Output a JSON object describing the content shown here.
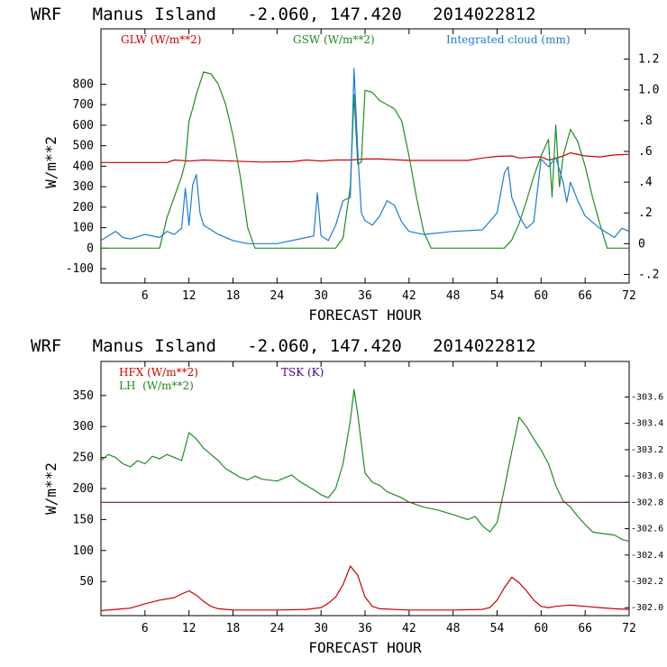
{
  "chart_data": [
    {
      "type": "line",
      "title": "WRF   Manus Island   -2.060, 147.420   2014022812",
      "xlabel": "FORECAST HOUR",
      "ylabel": "W/m**2",
      "xlim": [
        0,
        72
      ],
      "ylim": [
        -170,
        1070
      ],
      "y2lim": [
        -0.256,
        1.397
      ],
      "x_ticks": [
        6,
        12,
        18,
        24,
        30,
        36,
        42,
        48,
        54,
        60,
        66,
        72
      ],
      "y_ticks": [
        -100,
        0,
        100,
        200,
        300,
        400,
        500,
        600,
        700,
        800
      ],
      "y2_ticks": [
        "-.2",
        "0",
        ".2",
        ".4",
        ".6",
        ".8",
        "1.0",
        "1.2"
      ],
      "y2_tick_values": [
        -0.2,
        0,
        0.2,
        0.4,
        0.6,
        0.8,
        1.0,
        1.2
      ],
      "grid": false,
      "legend_position": "top",
      "series": [
        {
          "name": "GLW (W/m**2)",
          "axis": "left",
          "color": "#cc0000",
          "x": [
            0,
            6,
            9,
            10,
            12,
            14,
            18,
            22,
            26,
            28,
            30,
            32,
            34,
            36,
            38,
            42,
            46,
            50,
            52,
            54,
            56,
            57,
            58,
            59,
            60,
            61,
            62,
            63,
            64,
            66,
            68,
            70,
            72
          ],
          "y": [
            418,
            418,
            418,
            430,
            425,
            430,
            425,
            420,
            422,
            430,
            425,
            430,
            430,
            435,
            435,
            428,
            428,
            428,
            440,
            448,
            450,
            440,
            442,
            445,
            445,
            430,
            438,
            450,
            465,
            450,
            445,
            455,
            458
          ]
        },
        {
          "name": "GSW (W/m**2)",
          "axis": "left",
          "color": "#228b22",
          "x": [
            0,
            8,
            9,
            10,
            11,
            11.5,
            12,
            12.5,
            13,
            14,
            15,
            16,
            17,
            18,
            19,
            20,
            21,
            32,
            33,
            34,
            34.5,
            35,
            35.5,
            36,
            37,
            38,
            39,
            40,
            41,
            42,
            43,
            44,
            45,
            55,
            56,
            57,
            58,
            59,
            60,
            61,
            61.5,
            62,
            62.5,
            63,
            64,
            65,
            66,
            67,
            68,
            69,
            72
          ],
          "y": [
            0,
            0,
            150,
            250,
            350,
            420,
            620,
            680,
            750,
            860,
            850,
            800,
            700,
            550,
            350,
            100,
            0,
            0,
            50,
            300,
            750,
            410,
            420,
            770,
            760,
            720,
            700,
            680,
            620,
            450,
            250,
            80,
            0,
            0,
            40,
            120,
            230,
            350,
            450,
            530,
            250,
            600,
            300,
            450,
            580,
            520,
            400,
            250,
            120,
            0,
            0
          ]
        },
        {
          "name": "Integrated cloud (mm)",
          "axis": "right",
          "color": "#1e7bd1",
          "x": [
            0,
            1,
            2,
            3,
            4,
            6,
            8,
            9,
            10,
            11,
            11.5,
            12,
            12.5,
            13,
            13.5,
            14,
            16,
            18,
            20,
            24,
            28,
            29,
            29.5,
            30,
            31,
            32,
            33,
            34,
            34.5,
            35,
            35.5,
            36,
            37,
            38,
            39,
            40,
            41,
            42,
            44,
            48,
            52,
            54,
            55,
            55.5,
            56,
            57,
            58,
            59,
            60,
            61,
            62,
            63,
            63.5,
            64,
            65,
            66,
            68,
            70,
            71,
            72
          ],
          "y": [
            0.02,
            0.05,
            0.08,
            0.04,
            0.03,
            0.06,
            0.04,
            0.08,
            0.06,
            0.1,
            0.36,
            0.12,
            0.38,
            0.45,
            0.2,
            0.12,
            0.06,
            0.02,
            0.0,
            0.0,
            0.04,
            0.05,
            0.33,
            0.05,
            0.02,
            0.12,
            0.28,
            0.3,
            1.14,
            0.6,
            0.2,
            0.15,
            0.12,
            0.18,
            0.28,
            0.25,
            0.14,
            0.08,
            0.06,
            0.08,
            0.09,
            0.2,
            0.46,
            0.5,
            0.3,
            0.18,
            0.1,
            0.14,
            0.55,
            0.5,
            0.56,
            0.4,
            0.27,
            0.4,
            0.28,
            0.18,
            0.1,
            0.04,
            0.1,
            0.08
          ]
        }
      ]
    },
    {
      "type": "line",
      "title": "WRF   Manus Island   -2.060, 147.420   2014022812",
      "xlabel": "FORECAST HOUR",
      "ylabel": "W/m**2",
      "xlim": [
        0,
        72
      ],
      "ylim": [
        -5,
        405
      ],
      "y2lim": [
        301.94,
        303.87
      ],
      "x_ticks": [
        6,
        12,
        18,
        24,
        30,
        36,
        42,
        48,
        54,
        60,
        66,
        72
      ],
      "y_ticks": [
        50,
        100,
        150,
        200,
        250,
        300,
        350
      ],
      "y2_ticks": [
        "302.0",
        "302.2",
        "302.4",
        "302.6",
        "302.8",
        "303.0",
        "303.2",
        "303.4",
        "303.6"
      ],
      "y2_tick_values": [
        302.0,
        302.2,
        302.4,
        302.6,
        302.8,
        303.0,
        303.2,
        303.4,
        303.6
      ],
      "grid": false,
      "legend_position": "top-left",
      "series": [
        {
          "name": "HFX (W/m**2)",
          "axis": "left",
          "color": "#cc0000",
          "x": [
            0,
            2,
            4,
            6,
            8,
            10,
            11,
            12,
            13,
            14,
            15,
            16,
            18,
            24,
            28,
            30,
            31,
            32,
            33,
            34,
            35,
            36,
            37,
            38,
            42,
            48,
            52,
            53,
            54,
            55,
            56,
            57,
            58,
            59,
            60,
            61,
            62,
            64,
            66,
            68,
            70,
            72
          ],
          "y": [
            3,
            5,
            7,
            14,
            20,
            24,
            30,
            35,
            28,
            18,
            10,
            6,
            4,
            4,
            5,
            8,
            15,
            25,
            45,
            75,
            60,
            25,
            10,
            6,
            4,
            4,
            5,
            8,
            20,
            40,
            57,
            48,
            35,
            20,
            10,
            8,
            10,
            12,
            10,
            8,
            6,
            5
          ]
        },
        {
          "name": "LH  (W/m**2)",
          "axis": "left",
          "color": "#228b22",
          "x": [
            0,
            1,
            2,
            3,
            4,
            5,
            6,
            7,
            8,
            9,
            10,
            11,
            12,
            13,
            14,
            15,
            16,
            17,
            18,
            19,
            20,
            21,
            22,
            24,
            26,
            27,
            28,
            29,
            30,
            31,
            32,
            33,
            34,
            34.5,
            35,
            36,
            37,
            38,
            39,
            40,
            41,
            42,
            44,
            46,
            48,
            50,
            51,
            52,
            53,
            54,
            55,
            56,
            57,
            58,
            59,
            60,
            61,
            62,
            63,
            64,
            65,
            66,
            67,
            68,
            70,
            71,
            72
          ],
          "y": [
            245,
            255,
            250,
            240,
            235,
            245,
            240,
            252,
            248,
            255,
            250,
            245,
            290,
            280,
            265,
            255,
            245,
            232,
            225,
            218,
            214,
            220,
            215,
            212,
            222,
            212,
            205,
            198,
            190,
            185,
            200,
            240,
            310,
            360,
            320,
            225,
            210,
            205,
            195,
            190,
            185,
            178,
            170,
            165,
            158,
            150,
            155,
            140,
            130,
            145,
            200,
            260,
            315,
            300,
            280,
            262,
            240,
            205,
            180,
            170,
            155,
            142,
            130,
            128,
            125,
            118,
            115
          ]
        },
        {
          "name": "TSK (K)",
          "axis": "right",
          "color": "#7a0f3a",
          "x": [
            0,
            72
          ],
          "y": [
            302.8,
            302.8
          ]
        }
      ]
    }
  ]
}
